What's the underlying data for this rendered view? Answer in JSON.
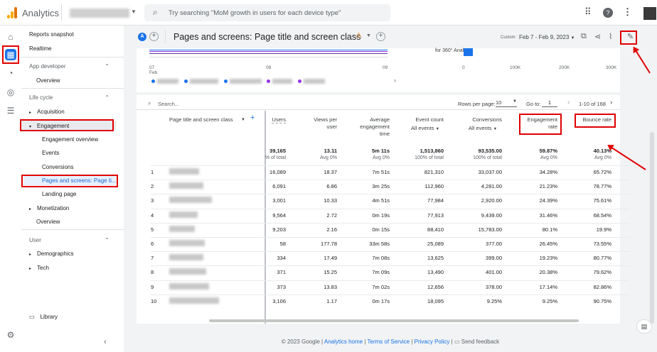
{
  "app": {
    "name": "Analytics",
    "search_placeholder": "Try searching \"MoM growth in users for each device type\""
  },
  "nav": {
    "reports_snapshot": "Reports snapshot",
    "realtime": "Realtime",
    "app_developer": "App developer",
    "overview1": "Overview",
    "life_cycle": "Life cycle",
    "acquisition": "Acquisition",
    "engagement": "Engagement",
    "engagement_overview": "Engagement overview",
    "events": "Events",
    "conversions": "Conversions",
    "pages_screens": "Pages and screens: Page ti...",
    "landing_page": "Landing page",
    "monetization": "Monetization",
    "overview2": "Overview",
    "user": "User",
    "demographics": "Demographics",
    "tech": "Tech",
    "library": "Library"
  },
  "header": {
    "avatar_letter": "A",
    "title": "Pages and screens: Page title and screen class",
    "custom": "Custom",
    "date_range": "Feb 7 - Feb 9, 2023"
  },
  "chart_top": {
    "x_labels": [
      "07\nFeb",
      "08",
      "09"
    ],
    "bar_label": "for 360° Anal...",
    "bar_axis": [
      "0",
      "100K",
      "200K",
      "300K"
    ]
  },
  "table_controls": {
    "search": "Search...",
    "rows_per_page_label": "Rows per page:",
    "rows_per_page": "10",
    "goto_label": "Go to:",
    "goto": "1",
    "range": "1-10 of 168"
  },
  "columns": {
    "dim": "Page title and screen class",
    "users": "Users",
    "views": "Views per\nuser",
    "avg_time": "Average\nengagement\ntime",
    "event_count": "Event count",
    "event_sub": "All events",
    "conversions": "Conversions",
    "conv_sub": "All events",
    "eng_rate": "Engagement\nrate",
    "bounce": "Bounce rate"
  },
  "totals": {
    "users": "39,165",
    "users_sub": "% of total",
    "views": "13.11",
    "views_sub": "Avg 0%",
    "avg_time": "5m 11s",
    "avg_time_sub": "Avg 0%",
    "events": "1,513,860",
    "events_sub": "100% of total",
    "conv": "93,535.00",
    "conv_sub": "100% of total",
    "eng": "59.87%",
    "eng_sub": "Avg 0%",
    "bounce": "40.13%",
    "bounce_sub": "Avg 0%"
  },
  "rows": [
    {
      "n": "1",
      "users": "16,089",
      "views": "18.37",
      "time": "7m 51s",
      "events": "821,310",
      "conv": "33,037.00",
      "eng": "34.28%",
      "bounce": "65.72%"
    },
    {
      "n": "2",
      "users": "6,091",
      "views": "6.86",
      "time": "3m 25s",
      "events": "112,960",
      "conv": "4,281.00",
      "eng": "21.23%",
      "bounce": "78.77%"
    },
    {
      "n": "3",
      "users": "3,001",
      "views": "10.33",
      "time": "4m 51s",
      "events": "77,984",
      "conv": "2,920.00",
      "eng": "24.39%",
      "bounce": "75.61%"
    },
    {
      "n": "4",
      "users": "9,564",
      "views": "2.72",
      "time": "0m 19s",
      "events": "77,913",
      "conv": "9,439.00",
      "eng": "31.46%",
      "bounce": "68.54%"
    },
    {
      "n": "5",
      "users": "9,203",
      "views": "2.16",
      "time": "0m 15s",
      "events": "88,410",
      "conv": "15,783.00",
      "eng": "80.1%",
      "bounce": "19.9%"
    },
    {
      "n": "6",
      "users": "58",
      "views": "177.78",
      "time": "33m 58s",
      "events": "25,089",
      "conv": "377.00",
      "eng": "26.45%",
      "bounce": "73.55%"
    },
    {
      "n": "7",
      "users": "334",
      "views": "17.49",
      "time": "7m 08s",
      "events": "13,625",
      "conv": "399.00",
      "eng": "19.23%",
      "bounce": "80.77%"
    },
    {
      "n": "8",
      "users": "371",
      "views": "15.25",
      "time": "7m 09s",
      "events": "13,490",
      "conv": "401.00",
      "eng": "20.38%",
      "bounce": "79.62%"
    },
    {
      "n": "9",
      "users": "373",
      "views": "13.83",
      "time": "7m 02s",
      "events": "12,656",
      "conv": "378.00",
      "eng": "17.14%",
      "bounce": "82.86%"
    },
    {
      "n": "10",
      "users": "3,106",
      "views": "1.17",
      "time": "0m 17s",
      "events": "18,095",
      "conv": "9.25%",
      "eng": "9.25%",
      "bounce": "90.75%"
    }
  ],
  "footer": {
    "copyright": "© 2023 Google |",
    "home": "Analytics home",
    "sep1": "|",
    "terms": "Terms of Service",
    "sep2": "|",
    "privacy": "Privacy Policy",
    "sep3": "|",
    "feedback": "Send feedback"
  },
  "colors": {
    "accent": "#1a73e8",
    "annotation": "#e00000",
    "warning": "#e37400"
  }
}
